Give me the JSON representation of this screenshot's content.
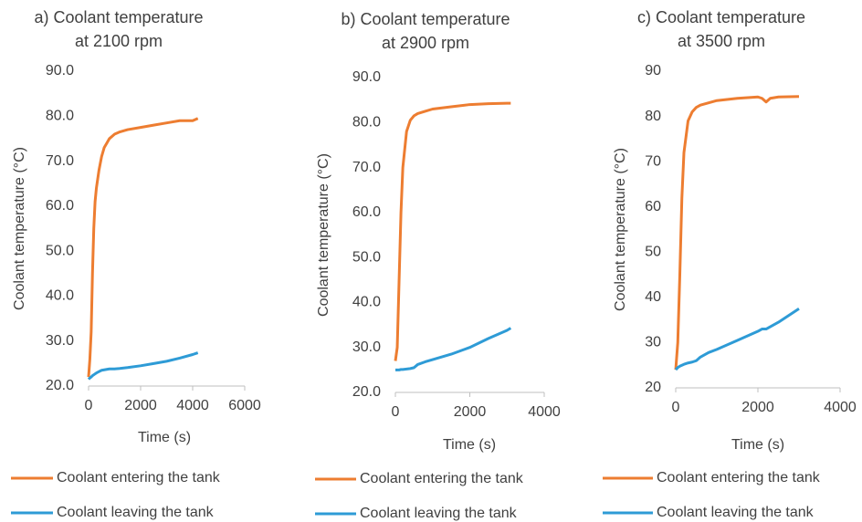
{
  "chart_data": [
    {
      "type": "line",
      "title": [
        "a) Coolant temperature",
        "at 2100 rpm"
      ],
      "x_label": "Time (s)",
      "y_label": "Coolant temperature (°C)",
      "x": [
        0,
        50,
        100,
        150,
        200,
        250,
        300,
        400,
        500,
        600,
        700,
        800,
        1000,
        1200,
        1500,
        2000,
        2500,
        3000,
        3500,
        4000,
        4200
      ],
      "series": [
        {
          "name": "Coolant entering the tank",
          "color": "#ed7d31",
          "values": [
            22,
            26,
            32,
            45,
            55,
            61,
            64,
            68,
            71,
            73,
            74,
            75,
            76,
            76.5,
            77,
            77.5,
            78,
            78.5,
            79,
            79,
            79.5
          ]
        },
        {
          "name": "Coolant leaving the tank",
          "color": "#2e9bd6",
          "values": [
            21.5,
            21.8,
            22,
            22.3,
            22.5,
            22.7,
            22.9,
            23.2,
            23.5,
            23.6,
            23.7,
            23.8,
            23.8,
            23.9,
            24.1,
            24.5,
            25,
            25.5,
            26.2,
            27,
            27.4
          ]
        }
      ],
      "xlim": [
        0,
        6000
      ],
      "xticks": [
        0,
        2000,
        4000,
        6000
      ],
      "ylim": [
        20,
        90
      ],
      "yticks": [
        {
          "value": 20,
          "label": "20.0"
        },
        {
          "value": 30,
          "label": "30.0"
        },
        {
          "value": 40,
          "label": "40.0"
        },
        {
          "value": 50,
          "label": "50.0"
        },
        {
          "value": 60,
          "label": "60.0"
        },
        {
          "value": 70,
          "label": "70.0"
        },
        {
          "value": 80,
          "label": "80.0"
        },
        {
          "value": 90,
          "label": "90.0"
        }
      ],
      "grid": false
    },
    {
      "type": "line",
      "title": [
        "b) Coolant temperature",
        "at 2900 rpm"
      ],
      "x_label": "Time (s)",
      "y_label": "Coolant temperature (°C)",
      "x": [
        0,
        50,
        100,
        150,
        200,
        300,
        400,
        500,
        600,
        800,
        1000,
        1500,
        2000,
        2500,
        3000,
        3100
      ],
      "series": [
        {
          "name": "Coolant entering the tank",
          "color": "#ed7d31",
          "values": [
            27,
            30,
            45,
            60,
            70,
            78,
            80.5,
            81.5,
            82,
            82.5,
            83,
            83.5,
            84,
            84.2,
            84.3,
            84.3
          ]
        },
        {
          "name": "Coolant leaving the tank",
          "color": "#2e9bd6",
          "values": [
            25,
            25,
            25,
            25.1,
            25.1,
            25.2,
            25.3,
            25.5,
            26.2,
            26.8,
            27.3,
            28.5,
            30,
            32,
            33.8,
            34.3
          ]
        }
      ],
      "xlim": [
        0,
        4000
      ],
      "xticks": [
        0,
        2000,
        4000
      ],
      "ylim": [
        20,
        90
      ],
      "yticks": [
        {
          "value": 20,
          "label": "20.0"
        },
        {
          "value": 30,
          "label": "30.0"
        },
        {
          "value": 40,
          "label": "40.0"
        },
        {
          "value": 50,
          "label": "50.0"
        },
        {
          "value": 60,
          "label": "60.0"
        },
        {
          "value": 70,
          "label": "70.0"
        },
        {
          "value": 80,
          "label": "80.0"
        },
        {
          "value": 90,
          "label": "90.0"
        }
      ],
      "grid": false
    },
    {
      "type": "line",
      "title": [
        "c) Coolant temperature",
        "at 3500 rpm"
      ],
      "x_label": "Time (s)",
      "y_label": "Coolant temperature (°C)",
      "x": [
        0,
        50,
        100,
        150,
        200,
        300,
        400,
        500,
        600,
        800,
        1000,
        1500,
        2000,
        2100,
        2200,
        2300,
        2500,
        3000
      ],
      "series": [
        {
          "name": "Coolant entering the tank",
          "color": "#ed7d31",
          "values": [
            24,
            30,
            45,
            62,
            72,
            79,
            81,
            82,
            82.5,
            83,
            83.5,
            84,
            84.3,
            84,
            83.2,
            84,
            84.3,
            84.4
          ]
        },
        {
          "name": "Coolant leaving the tank",
          "color": "#2e9bd6",
          "values": [
            24,
            24.5,
            24.8,
            25,
            25.2,
            25.5,
            25.7,
            26,
            26.8,
            27.8,
            28.5,
            30.5,
            32.5,
            33,
            33,
            33.5,
            34.5,
            37.5
          ]
        }
      ],
      "xlim": [
        0,
        4000
      ],
      "xticks": [
        0,
        2000,
        4000
      ],
      "ylim": [
        20,
        90
      ],
      "yticks": [
        20,
        30,
        40,
        50,
        60,
        70,
        80,
        90
      ],
      "grid": false
    }
  ]
}
